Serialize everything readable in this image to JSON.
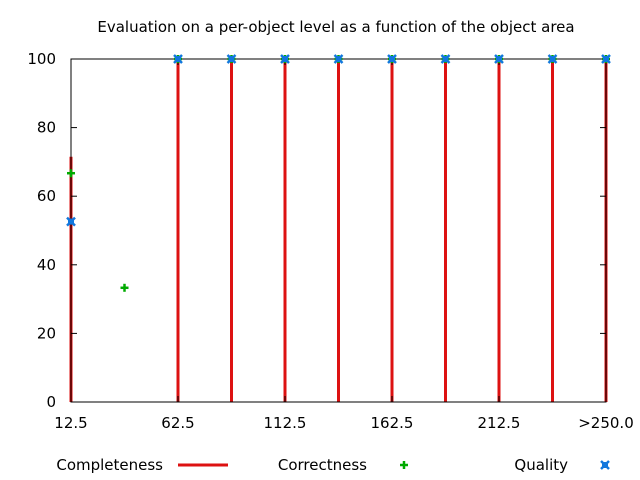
{
  "chart_data": {
    "type": "line",
    "title": "Evaluation on a per-object level as a function of the object area",
    "xlabel": "",
    "ylabel": "",
    "xlim": [
      12.5,
      262.5
    ],
    "ylim": [
      0,
      100
    ],
    "x_ticks": [
      {
        "value": 12.5,
        "label": "12.5"
      },
      {
        "value": 62.5,
        "label": "62.5"
      },
      {
        "value": 112.5,
        "label": "112.5"
      },
      {
        "value": 162.5,
        "label": "162.5"
      },
      {
        "value": 212.5,
        "label": "212.5"
      },
      {
        "value": 262.5,
        "label": ">250.0"
      }
    ],
    "y_ticks": [
      0,
      20,
      40,
      60,
      80,
      100
    ],
    "grid": false,
    "legend_position": "bottom",
    "series": [
      {
        "name": "Completeness",
        "style": "impulses",
        "color": "#dd1111",
        "x": [
          12.5,
          37.5,
          62.5,
          87.5,
          112.5,
          137.5,
          162.5,
          187.5,
          212.5,
          237.5,
          262.5
        ],
        "values": [
          71.5,
          0,
          100,
          100,
          100,
          100,
          100,
          100,
          100,
          100,
          100
        ]
      },
      {
        "name": "Correctness",
        "style": "points-plus",
        "color": "#00aa00",
        "x": [
          12.5,
          37.5,
          62.5,
          87.5,
          112.5,
          137.5,
          162.5,
          187.5,
          212.5,
          237.5,
          262.5
        ],
        "values": [
          66.7,
          33.3,
          100,
          100,
          100,
          100,
          100,
          100,
          100,
          100,
          100
        ]
      },
      {
        "name": "Quality",
        "style": "points-x",
        "color": "#1177dd",
        "x": [
          12.5,
          62.5,
          87.5,
          112.5,
          137.5,
          162.5,
          187.5,
          212.5,
          237.5,
          262.5
        ],
        "values": [
          52.6,
          100,
          100,
          100,
          100,
          100,
          100,
          100,
          100,
          100
        ]
      }
    ]
  }
}
